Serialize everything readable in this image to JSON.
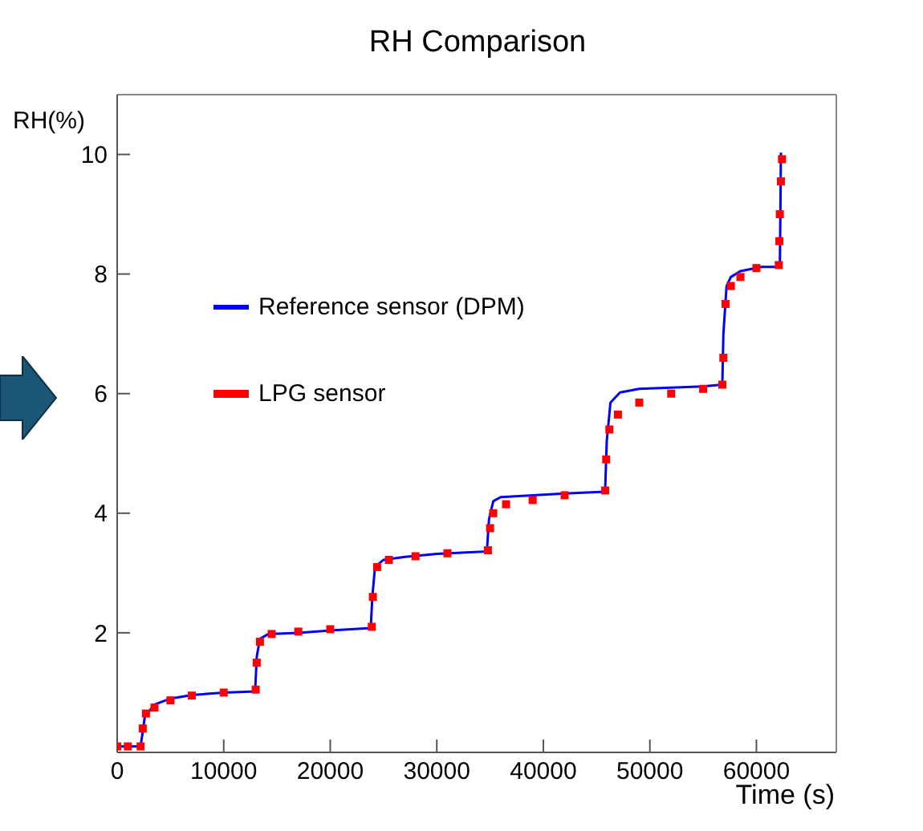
{
  "chart_data": {
    "type": "line",
    "title": "RH Comparison",
    "xlabel": "Time (s)",
    "ylabel": "RH(%)",
    "xlim": [
      0,
      67500
    ],
    "xticks": [
      0,
      10000,
      20000,
      30000,
      40000,
      50000,
      60000
    ],
    "ylim": [
      0,
      11
    ],
    "yticks": [
      2,
      4,
      6,
      8,
      10
    ],
    "grid": false,
    "legend": "top left",
    "series": [
      {
        "name": "Reference sensor (DPM)",
        "color": "#0000ff",
        "marker": "none",
        "x": [
          0,
          2200,
          2600,
          3500,
          5000,
          7000,
          10000,
          12950,
          13100,
          13400,
          14200,
          17000,
          20000,
          23800,
          23950,
          24200,
          25000,
          27000,
          30000,
          34700,
          34900,
          35300,
          36000,
          39000,
          42000,
          45800,
          45950,
          46300,
          47200,
          49000,
          52000,
          55000,
          56800,
          56900,
          57200,
          57600,
          58500,
          60500,
          62200,
          62250,
          62300
        ],
        "values": [
          0.1,
          0.1,
          0.6,
          0.8,
          0.9,
          0.96,
          1.0,
          1.02,
          1.6,
          1.9,
          1.98,
          2.0,
          2.04,
          2.08,
          2.6,
          3.1,
          3.22,
          3.27,
          3.32,
          3.36,
          3.9,
          4.2,
          4.27,
          4.3,
          4.33,
          4.36,
          5.2,
          5.85,
          6.02,
          6.08,
          6.1,
          6.12,
          6.15,
          7.0,
          7.8,
          7.95,
          8.05,
          8.12,
          8.12,
          9.0,
          10.03
        ]
      },
      {
        "name": "LPG sensor",
        "color": "#ff0000",
        "type": "scatter",
        "marker": "square",
        "x": [
          0,
          1000,
          2200,
          2400,
          2700,
          3500,
          5000,
          7000,
          10000,
          13000,
          13100,
          13400,
          14500,
          17000,
          20000,
          23900,
          24000,
          24400,
          25500,
          28000,
          31000,
          34800,
          35000,
          35300,
          36500,
          39000,
          42000,
          45800,
          45900,
          46200,
          47000,
          49000,
          52000,
          55000,
          56800,
          56900,
          57100,
          57600,
          58500,
          60000,
          62100,
          62150,
          62200,
          62300,
          62400
        ],
        "values": [
          0.1,
          0.1,
          0.1,
          0.4,
          0.65,
          0.75,
          0.87,
          0.95,
          1.0,
          1.05,
          1.5,
          1.85,
          1.98,
          2.02,
          2.06,
          2.1,
          2.6,
          3.1,
          3.22,
          3.28,
          3.33,
          3.38,
          3.75,
          4.0,
          4.15,
          4.22,
          4.3,
          4.38,
          4.9,
          5.4,
          5.65,
          5.85,
          6.0,
          6.08,
          6.15,
          6.6,
          7.5,
          7.8,
          7.95,
          8.1,
          8.15,
          8.55,
          9.0,
          9.55,
          9.92
        ]
      }
    ]
  }
}
